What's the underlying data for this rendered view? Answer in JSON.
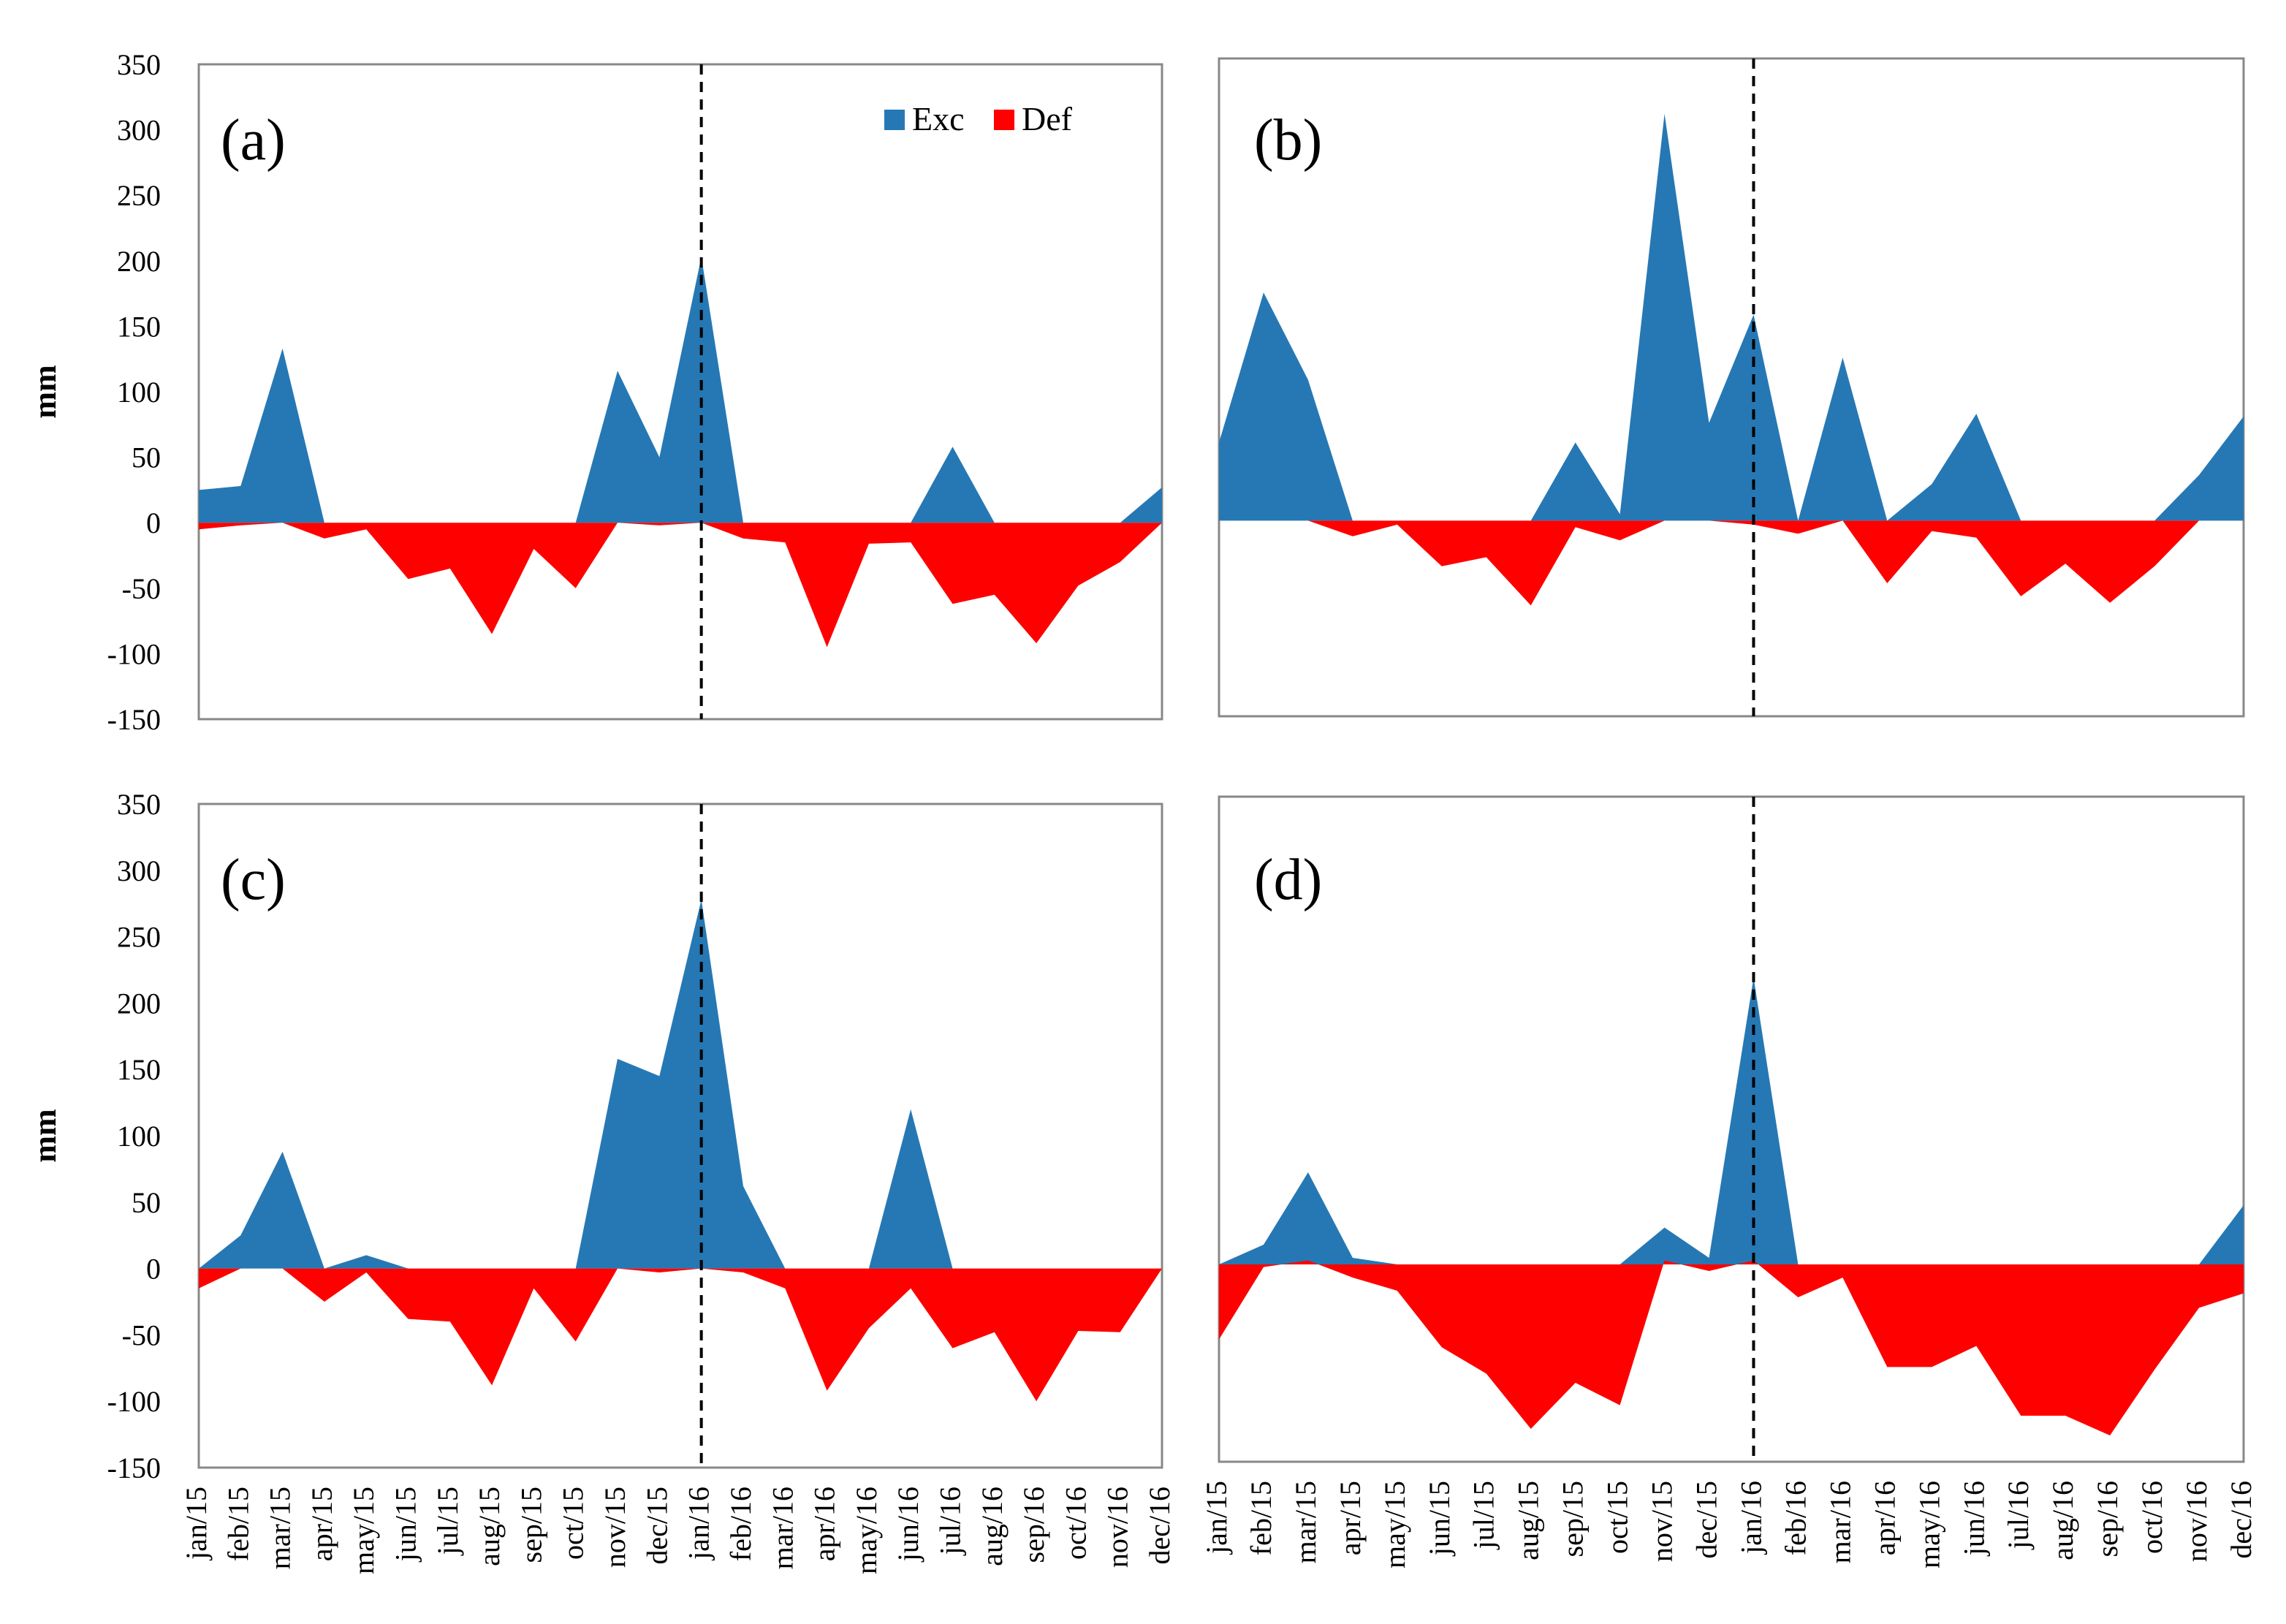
{
  "colors": {
    "exc": "#2678B4",
    "def": "#FF0000",
    "axis": "#000000"
  },
  "chart_data": [
    {
      "type": "area",
      "panel_label": "(a)",
      "ylabel": "mm",
      "ylim": [
        -150,
        350
      ],
      "yticks": [
        "350",
        "300",
        "250",
        "200",
        "150",
        "100",
        "50",
        "0",
        "-50",
        "-100",
        "-150"
      ],
      "legend": [
        "Exc",
        "Def"
      ],
      "divider_at": "jan/16",
      "series": [
        {
          "name": "Exc",
          "values": [
            25,
            28,
            133,
            0,
            0,
            0,
            0,
            0,
            0,
            0,
            116,
            50,
            203,
            0,
            0,
            0,
            0,
            0,
            58,
            0,
            0,
            0,
            0,
            27
          ]
        },
        {
          "name": "Def",
          "values": [
            -5,
            -2,
            0,
            -12,
            -5,
            -43,
            -35,
            -85,
            -20,
            -50,
            0,
            -2,
            0,
            -12,
            -15,
            -95,
            -16,
            -15,
            -62,
            -55,
            -92,
            -48,
            -30,
            0
          ]
        }
      ]
    },
    {
      "type": "area",
      "panel_label": "(b)",
      "ylabel": "",
      "ylim": [
        -150,
        350
      ],
      "yticks": [],
      "legend": [],
      "divider_at": "jan/16",
      "series": [
        {
          "name": "Exc",
          "values": [
            60,
            175,
            108,
            0,
            0,
            0,
            0,
            0,
            60,
            5,
            312,
            75,
            158,
            0,
            125,
            0,
            28,
            82,
            0,
            0,
            0,
            0,
            35,
            80
          ]
        },
        {
          "name": "Def",
          "values": [
            0,
            0,
            0,
            -12,
            -3,
            -35,
            -28,
            -65,
            -5,
            -15,
            0,
            0,
            -3,
            -10,
            0,
            -48,
            -8,
            -13,
            -58,
            -33,
            -63,
            -35,
            0,
            0
          ]
        }
      ]
    },
    {
      "type": "area",
      "panel_label": "(c)",
      "ylabel": "mm",
      "ylim": [
        -150,
        350
      ],
      "yticks": [
        "350",
        "300",
        "250",
        "200",
        "150",
        "100",
        "50",
        "0",
        "-50",
        "-100",
        "-150"
      ],
      "legend": [],
      "divider_at": "jan/16",
      "series": [
        {
          "name": "Exc",
          "values": [
            0,
            25,
            88,
            0,
            10,
            0,
            0,
            0,
            0,
            0,
            158,
            145,
            278,
            62,
            0,
            0,
            0,
            120,
            0,
            0,
            0,
            0,
            0,
            0
          ]
        },
        {
          "name": "Def",
          "values": [
            -15,
            0,
            0,
            -25,
            -3,
            -38,
            -40,
            -88,
            -15,
            -55,
            0,
            -3,
            0,
            -3,
            -15,
            -92,
            -45,
            -15,
            -60,
            -48,
            -100,
            -47,
            -48,
            0
          ]
        }
      ]
    },
    {
      "type": "area",
      "panel_label": "(d)",
      "ylabel": "",
      "ylim": [
        -150,
        350
      ],
      "yticks": [],
      "legend": [],
      "divider_at": "jan/16",
      "series": [
        {
          "name": "Exc",
          "values": [
            0,
            15,
            70,
            5,
            0,
            0,
            0,
            0,
            0,
            0,
            28,
            5,
            218,
            0,
            0,
            0,
            0,
            0,
            0,
            0,
            0,
            0,
            0,
            45
          ]
        },
        {
          "name": "Def",
          "values": [
            -57,
            -2,
            3,
            -10,
            -20,
            -63,
            -83,
            -125,
            -90,
            -107,
            3,
            -5,
            3,
            -25,
            -10,
            -78,
            -78,
            -62,
            -115,
            -115,
            -130,
            -80,
            -33,
            -22
          ]
        }
      ]
    }
  ],
  "x_categories": [
    "jan/15",
    "feb/15",
    "mar/15",
    "apr/15",
    "may/15",
    "jun/15",
    "jul/15",
    "aug/15",
    "sep/15",
    "oct/15",
    "nov/15",
    "dec/15",
    "jan/16",
    "feb/16",
    "mar/16",
    "apr/16",
    "may/16",
    "jun/16",
    "jul/16",
    "aug/16",
    "sep/16",
    "oct/16",
    "nov/16",
    "dec/16"
  ]
}
